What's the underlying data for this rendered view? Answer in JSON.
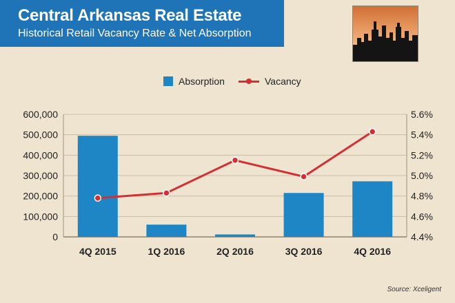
{
  "header": {
    "title": "Central Arkansas Real Estate",
    "subtitle": "Historical Retail Vacancy Rate & Net Absorption"
  },
  "logo": {
    "icon": "city-skyline-icon"
  },
  "legend": {
    "absorption": "Absorption",
    "vacancy": "Vacancy"
  },
  "colors": {
    "header": "#1f73b7",
    "bar": "#1f86c5",
    "line": "#d32f34",
    "background": "#efe4cf"
  },
  "chart_data": {
    "type": "bar",
    "title": "Historical Retail Vacancy Rate & Net Absorption",
    "categories": [
      "4Q 2015",
      "1Q 2016",
      "2Q 2016",
      "3Q 2016",
      "4Q 2016"
    ],
    "series": [
      {
        "name": "Absorption",
        "type": "bar",
        "axis": "left",
        "values": [
          495000,
          60000,
          12000,
          215000,
          272000
        ]
      },
      {
        "name": "Vacancy",
        "type": "line",
        "axis": "right",
        "values": [
          4.78,
          4.83,
          5.15,
          4.99,
          5.43
        ]
      }
    ],
    "y_left": {
      "range": [
        0,
        600000
      ],
      "ticks": [
        0,
        100000,
        200000,
        300000,
        400000,
        500000,
        600000
      ],
      "tick_labels": [
        "0",
        "100,000",
        "200,000",
        "300,000",
        "400,000",
        "500,000",
        "600,000"
      ]
    },
    "y_right": {
      "range": [
        4.4,
        5.6
      ],
      "ticks": [
        4.4,
        4.6,
        4.8,
        5.0,
        5.2,
        5.4,
        5.6
      ],
      "tick_labels": [
        "4.4%",
        "4.6%",
        "4.8%",
        "5.0%",
        "5.2%",
        "5.4%",
        "5.6%"
      ]
    },
    "grid": true,
    "legend_position": "top"
  },
  "source": "Source: Xceligent"
}
